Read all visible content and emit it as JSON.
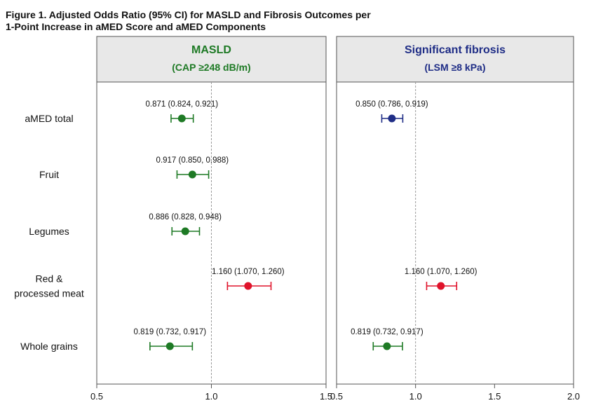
{
  "figure": {
    "title_line1": "Figure 1. Adjusted Odds Ratio (95% CI) for MASLD and Fibrosis Outcomes per",
    "title_line2": "1-Point Increase in aMED Score and aMED Components"
  },
  "colors": {
    "green": "#1e7a25",
    "navy": "#1f2d86",
    "red": "#e0132b",
    "header_bg": "#e8e8e8",
    "masld_title": "#1e7a25",
    "fibrosis_title": "#1f2d86"
  },
  "chart_data": {
    "type": "forest",
    "rows": [
      "aMED total",
      "Fruit",
      "Legumes",
      "Red &\nprocessed meat",
      "Whole grains"
    ],
    "row_label_lines": [
      [
        "aMED total"
      ],
      [
        "Fruit"
      ],
      [
        "Legumes"
      ],
      [
        "Red &",
        "processed meat"
      ],
      [
        "Whole grains"
      ]
    ],
    "reference_line": 1.0,
    "panels": [
      {
        "title": "MASLD",
        "subtitle": "(CAP ≥248 dB/m)",
        "xlim": [
          0.5,
          1.5
        ],
        "ticks": [
          0.5,
          1.0,
          1.5
        ],
        "tick_labels": [
          "0.5",
          "1.0",
          "1.5"
        ],
        "estimates": [
          {
            "row": 0,
            "or": 0.871,
            "lo": 0.824,
            "hi": 0.921,
            "label": "0.871 (0.824, 0.921)",
            "color": "green"
          },
          {
            "row": 1,
            "or": 0.917,
            "lo": 0.85,
            "hi": 0.988,
            "label": "0.917 (0.850, 0.988)",
            "color": "green"
          },
          {
            "row": 2,
            "or": 0.886,
            "lo": 0.828,
            "hi": 0.948,
            "label": "0.886 (0.828, 0.948)",
            "color": "green"
          },
          {
            "row": 3,
            "or": 1.16,
            "lo": 1.07,
            "hi": 1.26,
            "label": "1.160 (1.070, 1.260)",
            "color": "red"
          },
          {
            "row": 4,
            "or": 0.819,
            "lo": 0.732,
            "hi": 0.917,
            "label": "0.819 (0.732, 0.917)",
            "color": "green"
          }
        ]
      },
      {
        "title": "Significant fibrosis",
        "subtitle": "(LSM ≥8 kPa)",
        "xlim": [
          0.5,
          2.0
        ],
        "ticks": [
          0.5,
          1.0,
          1.5,
          2.0
        ],
        "tick_labels": [
          "0.5",
          "1.0",
          "1.5",
          "2.0"
        ],
        "estimates": [
          {
            "row": 0,
            "or": 0.85,
            "lo": 0.786,
            "hi": 0.919,
            "label": "0.850 (0.786, 0.919)",
            "color": "navy"
          },
          {
            "row": 3,
            "or": 1.16,
            "lo": 1.07,
            "hi": 1.26,
            "label": "1.160 (1.070, 1.260)",
            "color": "red"
          },
          {
            "row": 4,
            "or": 0.819,
            "lo": 0.732,
            "hi": 0.917,
            "label": "0.819 (0.732, 0.917)",
            "color": "green"
          }
        ]
      }
    ]
  }
}
